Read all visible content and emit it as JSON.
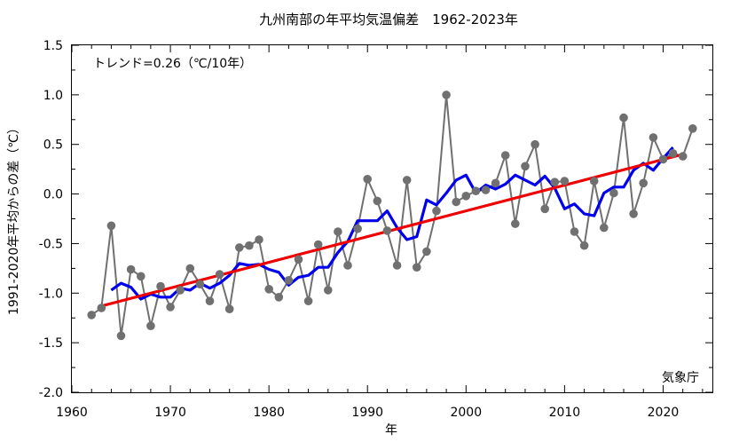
{
  "chart_data": {
    "type": "line",
    "title": "九州南部の年平均気温偏差　1962-2023年",
    "xlabel": "年",
    "ylabel": "1991-2020年平均からの差（℃）",
    "xlim": [
      1960,
      2025
    ],
    "ylim": [
      -2.0,
      1.5
    ],
    "x_ticks": [
      "1960",
      "1970",
      "1980",
      "1990",
      "2000",
      "2010",
      "2020"
    ],
    "y_ticks": [
      "1.5",
      "1.0",
      "0.5",
      "0.0",
      "-0.5",
      "-1.0",
      "-1.5",
      "-2.0"
    ],
    "grid": false,
    "trend_label": "トレンド=0.26（℃/10年）",
    "credit": "気象庁",
    "series": [
      {
        "role": "annual",
        "color": "#707070",
        "x": [
          1962,
          1963,
          1964,
          1965,
          1966,
          1967,
          1968,
          1969,
          1970,
          1971,
          1972,
          1973,
          1974,
          1975,
          1976,
          1977,
          1978,
          1979,
          1980,
          1981,
          1982,
          1983,
          1984,
          1985,
          1986,
          1987,
          1988,
          1989,
          1990,
          1991,
          1992,
          1993,
          1994,
          1995,
          1996,
          1997,
          1998,
          1999,
          2000,
          2001,
          2002,
          2003,
          2004,
          2005,
          2006,
          2007,
          2008,
          2009,
          2010,
          2011,
          2012,
          2013,
          2014,
          2015,
          2016,
          2017,
          2018,
          2019,
          2020,
          2021,
          2022,
          2023
        ],
        "values": [
          -1.22,
          -1.15,
          -0.32,
          -1.43,
          -0.76,
          -0.83,
          -1.33,
          -0.93,
          -1.14,
          -0.97,
          -0.75,
          -0.91,
          -1.08,
          -0.81,
          -1.16,
          -0.54,
          -0.52,
          -0.46,
          -0.96,
          -1.04,
          -0.87,
          -0.66,
          -1.08,
          -0.51,
          -0.97,
          -0.38,
          -0.72,
          -0.35,
          0.15,
          -0.07,
          -0.37,
          -0.72,
          0.14,
          -0.74,
          -0.58,
          -0.17,
          1.0,
          -0.08,
          -0.02,
          0.03,
          0.04,
          0.11,
          0.39,
          -0.3,
          0.28,
          0.5,
          -0.15,
          0.12,
          0.13,
          -0.38,
          -0.52,
          0.13,
          -0.34,
          0.01,
          0.77,
          -0.2,
          0.11,
          0.57,
          0.35,
          0.41,
          0.38,
          0.66
        ]
      },
      {
        "role": "5-year running mean",
        "color": "#0000ee",
        "x": [
          1964,
          1965,
          1966,
          1967,
          1968,
          1969,
          1970,
          1971,
          1972,
          1973,
          1974,
          1975,
          1976,
          1977,
          1978,
          1979,
          1980,
          1981,
          1982,
          1983,
          1984,
          1985,
          1986,
          1987,
          1988,
          1989,
          1990,
          1991,
          1992,
          1993,
          1994,
          1995,
          1996,
          1997,
          1998,
          1999,
          2000,
          2001,
          2002,
          2003,
          2004,
          2005,
          2006,
          2007,
          2008,
          2009,
          2010,
          2011,
          2012,
          2013,
          2014,
          2015,
          2016,
          2017,
          2018,
          2019,
          2020,
          2021
        ],
        "values": [
          -0.97,
          -0.9,
          -0.94,
          -1.06,
          -1.01,
          -1.04,
          -1.04,
          -0.95,
          -0.97,
          -0.9,
          -0.95,
          -0.9,
          -0.82,
          -0.7,
          -0.72,
          -0.71,
          -0.76,
          -0.79,
          -0.92,
          -0.84,
          -0.82,
          -0.74,
          -0.74,
          -0.59,
          -0.48,
          -0.27,
          -0.27,
          -0.27,
          -0.17,
          -0.34,
          -0.46,
          -0.43,
          -0.06,
          -0.11,
          0.01,
          0.14,
          0.19,
          0.01,
          0.09,
          0.05,
          0.1,
          0.19,
          0.14,
          0.09,
          0.18,
          0.06,
          -0.15,
          -0.1,
          -0.2,
          -0.22,
          0.01,
          0.07,
          0.07,
          0.24,
          0.31,
          0.24,
          0.36,
          0.47
        ]
      },
      {
        "role": "trend",
        "color": "#ee0000",
        "x": [
          1963,
          2022
        ],
        "values": [
          -1.13,
          0.4
        ]
      }
    ]
  }
}
